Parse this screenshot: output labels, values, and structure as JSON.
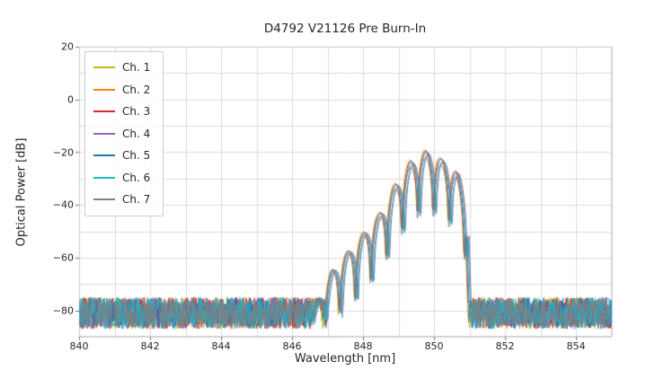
{
  "chart_data": {
    "type": "line",
    "title": "D4792 V21126 Pre Burn-In",
    "xlabel": "Wavelength [nm]",
    "ylabel": "Optical Power [dB]",
    "xlim": [
      840,
      855
    ],
    "ylim": [
      -90,
      20
    ],
    "xticks": [
      840,
      842,
      844,
      846,
      848,
      850,
      852,
      854
    ],
    "xtick_labels": [
      "840",
      "842",
      "844",
      "846",
      "848",
      "850",
      "852",
      "854"
    ],
    "yticks": [
      20,
      0,
      -20,
      -40,
      -60,
      -80
    ],
    "ytick_labels": [
      "20",
      "0",
      "−20",
      "−40",
      "−60",
      "−80"
    ],
    "grid": {
      "show": true,
      "x_step": 1,
      "y_step": 10,
      "color": "#dcdcdc"
    },
    "legend_position": "upper left",
    "noise_floor_db": -81,
    "noise_spread_db": 12,
    "signal": {
      "description": "laser spectrum with interference fringes on noise floor",
      "envelope_points": [
        [
          846.5,
          -84
        ],
        [
          847.14,
          -65
        ],
        [
          847.58,
          -58
        ],
        [
          848.02,
          -51
        ],
        [
          848.46,
          -44
        ],
        [
          848.9,
          -33
        ],
        [
          849.34,
          -24
        ],
        [
          849.78,
          -20
        ],
        [
          850.22,
          -23
        ],
        [
          850.66,
          -28
        ],
        [
          850.92,
          -40
        ],
        [
          851.0,
          -84
        ]
      ],
      "fringe_period_nm": 0.44,
      "fringe_center_nm": 849.78,
      "fringe_min_frac": 0.09,
      "peak_wavelength_nm": 849.7,
      "peak_power_db": -20
    },
    "series": [
      {
        "name": "Ch. 1",
        "color": "#bcbd22"
      },
      {
        "name": "Ch. 2",
        "color": "#ff7f0e"
      },
      {
        "name": "Ch. 3",
        "color": "#d62728"
      },
      {
        "name": "Ch. 4",
        "color": "#9467bd"
      },
      {
        "name": "Ch. 5",
        "color": "#1f77b4"
      },
      {
        "name": "Ch. 6",
        "color": "#17becf"
      },
      {
        "name": "Ch. 7",
        "color": "#7f7f7f"
      }
    ]
  }
}
